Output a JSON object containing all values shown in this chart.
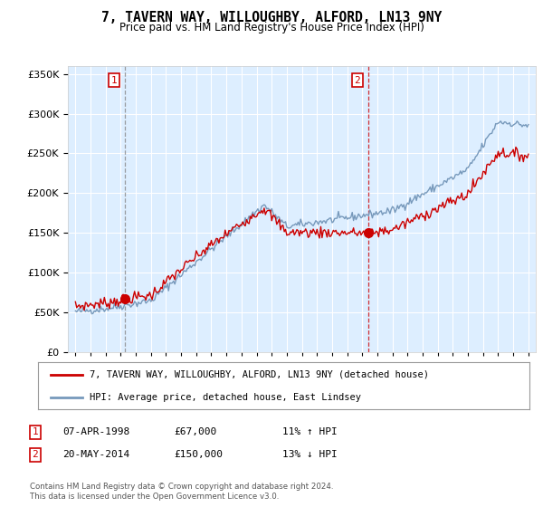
{
  "title": "7, TAVERN WAY, WILLOUGHBY, ALFORD, LN13 9NY",
  "subtitle": "Price paid vs. HM Land Registry's House Price Index (HPI)",
  "sale1_date": "07-APR-1998",
  "sale1_price": 67000,
  "sale1_hpi": "11% ↑ HPI",
  "sale2_date": "20-MAY-2014",
  "sale2_price": 150000,
  "sale2_hpi": "13% ↓ HPI",
  "legend_house": "7, TAVERN WAY, WILLOUGHBY, ALFORD, LN13 9NY (detached house)",
  "legend_hpi": "HPI: Average price, detached house, East Lindsey",
  "footer": "Contains HM Land Registry data © Crown copyright and database right 2024.\nThis data is licensed under the Open Government Licence v3.0.",
  "house_color": "#cc0000",
  "hpi_color": "#7799bb",
  "sale1_vline_color": "#888888",
  "sale2_vline_color": "#cc0000",
  "plot_bg": "#ddeeff",
  "ylim": [
    0,
    360000
  ],
  "yticks": [
    0,
    50000,
    100000,
    150000,
    200000,
    250000,
    300000,
    350000
  ],
  "sale1_year": 1998.27,
  "sale2_year": 2014.38,
  "xmin": 1995,
  "xmax": 2025
}
